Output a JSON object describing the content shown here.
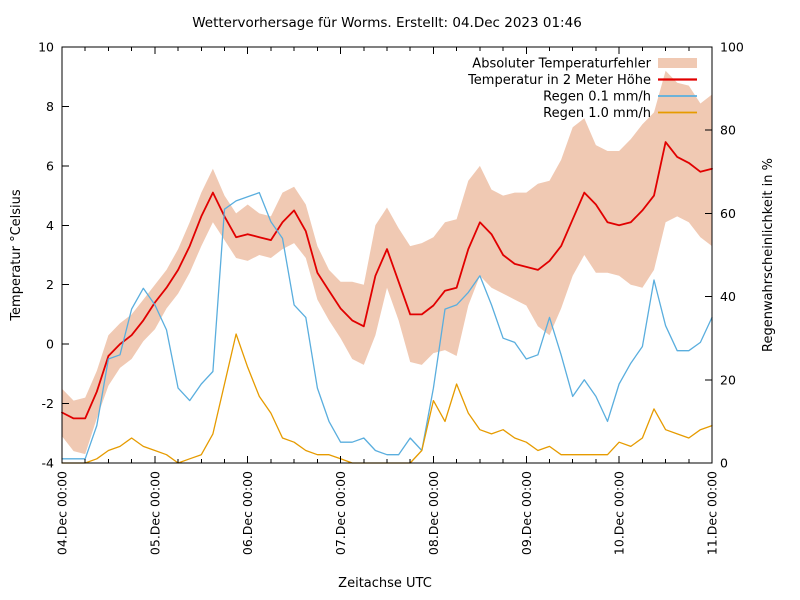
{
  "title": "Wettervorhersage für Worms. Erstellt: 04.Dec 2023 01:46",
  "chart_data": {
    "type": "line",
    "title": "Wettervorhersage für Worms. Erstellt: 04.Dec 2023 01:46",
    "xlabel": "Zeitachse UTC",
    "ylabel_left": "Temperatur °Celsius",
    "ylabel_right": "Regenwahrscheinlichkeit in %",
    "grid": false,
    "legend_position": "top-right-inside",
    "x_unit": "hours from 04.Dec 00:00 UTC",
    "x_range_hours": [
      0,
      168
    ],
    "sample_step_hours": 3,
    "x_major_ticks_hours": [
      0,
      24,
      48,
      72,
      96,
      120,
      144,
      168
    ],
    "x_major_labels": [
      "04.Dec 00:00",
      "05.Dec 00:00",
      "06.Dec 00:00",
      "07.Dec 00:00",
      "08.Dec 00:00",
      "09.Dec 00:00",
      "10.Dec 00:00",
      "11.Dec 00:00"
    ],
    "x_minor_step_hours": 6,
    "y_left_range": [
      -4,
      10
    ],
    "y_left_ticks": [
      10,
      8,
      6,
      4,
      2,
      0,
      -2,
      -4
    ],
    "y_right_range": [
      0,
      100
    ],
    "y_right_ticks": [
      100,
      80,
      60,
      40,
      20,
      0
    ],
    "series": [
      {
        "name": "Absoluter Temperaturfehler",
        "type": "band",
        "axis": "left",
        "color": "#f0c9b3",
        "upper": [
          -1.5,
          -1.9,
          -1.8,
          -0.9,
          0.3,
          0.7,
          1.0,
          1.5,
          2.0,
          2.5,
          3.2,
          4.1,
          5.1,
          5.9,
          5.0,
          4.4,
          4.7,
          4.4,
          4.3,
          5.1,
          5.3,
          4.7,
          3.3,
          2.5,
          2.1,
          2.1,
          2.0,
          4.0,
          4.6,
          3.9,
          3.3,
          3.4,
          3.6,
          4.1,
          4.2,
          5.5,
          6.0,
          5.2,
          5.0,
          5.1,
          5.1,
          5.4,
          5.5,
          6.2,
          7.3,
          7.6,
          6.7,
          6.5,
          6.5,
          6.9,
          7.4,
          7.8,
          9.2,
          8.8,
          8.7,
          8.1,
          8.4
        ],
        "lower": [
          -3.1,
          -3.6,
          -3.7,
          -2.5,
          -1.4,
          -0.8,
          -0.5,
          0.1,
          0.5,
          1.2,
          1.7,
          2.4,
          3.3,
          4.1,
          3.5,
          2.9,
          2.8,
          3.0,
          2.9,
          3.2,
          3.4,
          2.9,
          1.5,
          0.8,
          0.2,
          -0.5,
          -0.7,
          0.3,
          1.9,
          0.8,
          -0.6,
          -0.7,
          -0.3,
          -0.2,
          -0.4,
          1.3,
          2.3,
          1.9,
          1.7,
          1.5,
          1.3,
          0.6,
          0.3,
          1.2,
          2.3,
          3.0,
          2.4,
          2.4,
          2.3,
          2.0,
          1.9,
          2.5,
          4.1,
          4.3,
          4.1,
          3.6,
          3.3
        ]
      },
      {
        "name": "Temperatur in 2 Meter Höhe",
        "type": "line",
        "axis": "left",
        "color": "#e10000",
        "width": 1.8,
        "values": [
          -2.3,
          -2.5,
          -2.5,
          -1.6,
          -0.4,
          0.0,
          0.3,
          0.8,
          1.4,
          1.9,
          2.5,
          3.3,
          4.3,
          5.1,
          4.3,
          3.6,
          3.7,
          3.6,
          3.5,
          4.1,
          4.5,
          3.8,
          2.4,
          1.8,
          1.2,
          0.8,
          0.6,
          2.3,
          3.2,
          2.1,
          1.0,
          1.0,
          1.3,
          1.8,
          1.9,
          3.2,
          4.1,
          3.7,
          3.0,
          2.7,
          2.6,
          2.5,
          2.8,
          3.3,
          4.2,
          5.1,
          4.7,
          4.1,
          4.0,
          4.1,
          4.5,
          5.0,
          6.8,
          6.3,
          6.1,
          5.8,
          5.9
        ]
      },
      {
        "name": "Regen 0.1 mm/h",
        "type": "line",
        "axis": "right",
        "color": "#5aaede",
        "width": 1.3,
        "values": [
          1,
          1,
          1,
          9,
          25,
          26,
          37,
          42,
          38,
          32,
          18,
          15,
          19,
          22,
          61,
          63,
          64,
          65,
          58,
          54,
          38,
          35,
          18,
          10,
          5,
          5,
          6,
          3,
          2,
          2,
          6,
          3,
          18,
          37,
          38,
          41,
          45,
          38,
          30,
          29,
          25,
          26,
          35,
          26,
          16,
          20,
          16,
          10,
          19,
          24,
          28,
          44,
          33,
          27,
          27,
          29,
          35
        ]
      },
      {
        "name": "Regen 1.0 mm/h",
        "type": "line",
        "axis": "right",
        "color": "#e69b00",
        "width": 1.3,
        "values": [
          0,
          0,
          0,
          1,
          3,
          4,
          6,
          4,
          3,
          2,
          0,
          1,
          2,
          7,
          19,
          31,
          23,
          16,
          12,
          6,
          5,
          3,
          2,
          2,
          1,
          0,
          0,
          0,
          0,
          0,
          0,
          3,
          15,
          10,
          19,
          12,
          8,
          7,
          8,
          6,
          5,
          3,
          4,
          2,
          2,
          2,
          2,
          2,
          5,
          4,
          6,
          13,
          8,
          7,
          6,
          8,
          9
        ]
      }
    ]
  }
}
